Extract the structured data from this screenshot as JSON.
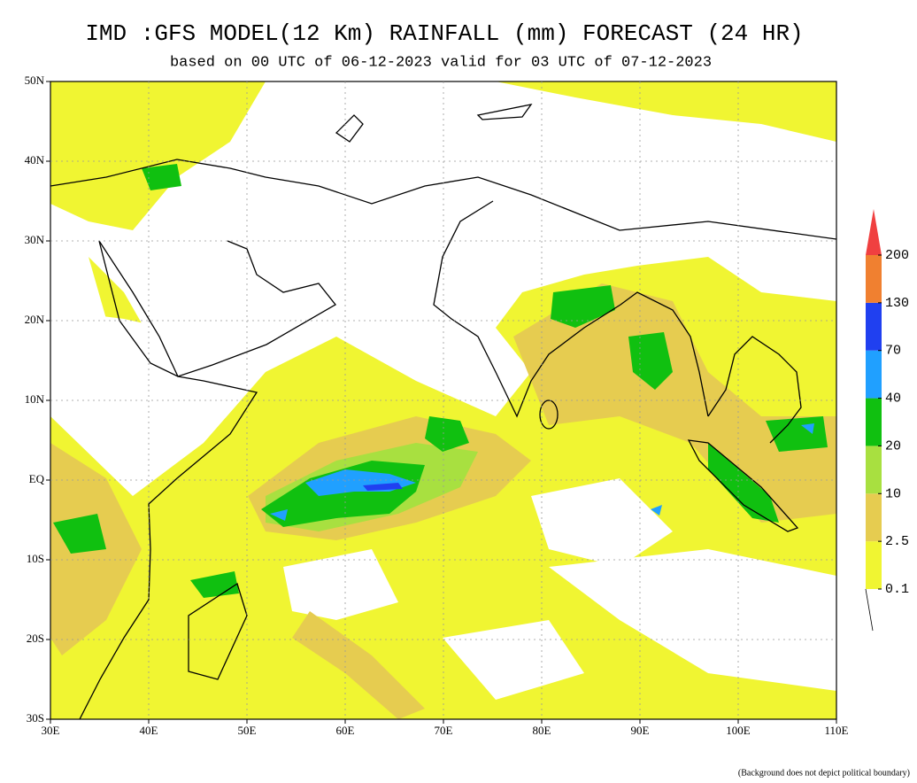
{
  "header": {
    "title": "IMD :GFS MODEL(12 Km) RAINFALL (mm) FORECAST (24 HR)",
    "subtitle": "based on 00 UTC of 06-12-2023 valid for 03 UTC of 07-12-2023"
  },
  "map": {
    "lon_ticks": [
      "30E",
      "40E",
      "50E",
      "60E",
      "70E",
      "80E",
      "90E",
      "100E",
      "110E"
    ],
    "lat_ticks": [
      "50N",
      "40N",
      "30N",
      "20N",
      "10N",
      "EQ",
      "10S",
      "20S",
      "30S"
    ]
  },
  "colorbar": {
    "levels": [
      0.1,
      2.5,
      10,
      20,
      40,
      70,
      130,
      200
    ],
    "colors": [
      "#f0f532",
      "#e6cc50",
      "#a8e040",
      "#10c010",
      "#20a0ff",
      "#2040f0",
      "#f08030",
      "#f04040"
    ]
  },
  "footnote": "(Background does not depict political boundary)"
}
